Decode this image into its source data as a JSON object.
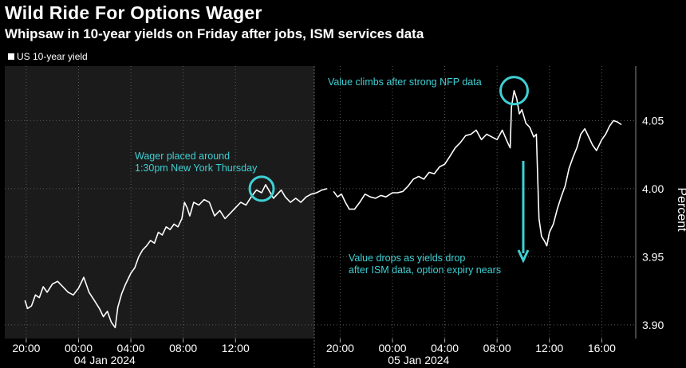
{
  "title": "Wild Ride For Options Wager",
  "subtitle": "Whipsaw in 10-year yields on Friday after jobs, ISM services data",
  "colors": {
    "background": "#000000",
    "shaded_region": "#1b1b1b",
    "line": "#ffffff",
    "annotation": "#3fd0d4",
    "grid": "#5a5a5a",
    "text": "#ffffff"
  },
  "chart_data": {
    "type": "line",
    "title": "Wild Ride For Options Wager",
    "subtitle": "Whipsaw in 10-year yields on Friday after jobs, ISM services data",
    "ylabel": "Percent",
    "ylim": [
      3.89,
      4.09
    ],
    "y_ticks": [
      "3.90",
      "3.95",
      "4.00",
      "4.05"
    ],
    "x_tick_hours": [
      -4,
      0,
      4,
      8,
      12,
      20,
      24,
      28,
      32,
      36,
      40
    ],
    "x_ticks": [
      "20:00",
      "00:00",
      "04:00",
      "08:00",
      "12:00",
      "20:00",
      "00:00",
      "04:00",
      "08:00",
      "12:00",
      "16:00"
    ],
    "date_labels": [
      "04 Jan 2024",
      "05 Jan 2024"
    ],
    "shaded_region": "04 Jan 2024",
    "grid": true,
    "legend": {
      "position": "top-left",
      "entries": [
        "US 10-year yield"
      ]
    },
    "series": [
      {
        "name": "US 10-year yield",
        "segments": [
          [
            [
              -4.1,
              3.918
            ],
            [
              -3.9,
              3.912
            ],
            [
              -3.6,
              3.914
            ],
            [
              -3.3,
              3.922
            ],
            [
              -3.0,
              3.92
            ],
            [
              -2.7,
              3.928
            ],
            [
              -2.4,
              3.924
            ],
            [
              -2.0,
              3.93
            ],
            [
              -1.6,
              3.932
            ],
            [
              -1.2,
              3.928
            ],
            [
              -0.8,
              3.924
            ],
            [
              -0.4,
              3.922
            ],
            [
              0.0,
              3.927
            ],
            [
              0.4,
              3.935
            ],
            [
              0.8,
              3.924
            ],
            [
              1.2,
              3.918
            ],
            [
              1.6,
              3.912
            ],
            [
              1.9,
              3.906
            ],
            [
              2.2,
              3.91
            ],
            [
              2.5,
              3.902
            ],
            [
              2.8,
              3.898
            ],
            [
              3.0,
              3.913
            ],
            [
              3.3,
              3.923
            ],
            [
              3.6,
              3.93
            ],
            [
              4.0,
              3.938
            ],
            [
              4.3,
              3.942
            ],
            [
              4.6,
              3.95
            ],
            [
              4.9,
              3.955
            ],
            [
              5.2,
              3.958
            ],
            [
              5.5,
              3.962
            ],
            [
              5.8,
              3.96
            ],
            [
              6.1,
              3.968
            ],
            [
              6.4,
              3.966
            ],
            [
              6.7,
              3.972
            ],
            [
              7.0,
              3.97
            ],
            [
              7.3,
              3.974
            ],
            [
              7.6,
              3.972
            ],
            [
              7.9,
              3.978
            ],
            [
              8.1,
              3.99
            ],
            [
              8.3,
              3.986
            ],
            [
              8.5,
              3.98
            ],
            [
              8.8,
              3.99
            ],
            [
              9.2,
              3.988
            ],
            [
              9.6,
              3.992
            ],
            [
              10.0,
              3.99
            ],
            [
              10.4,
              3.98
            ],
            [
              10.8,
              3.984
            ],
            [
              11.2,
              3.978
            ],
            [
              11.6,
              3.982
            ],
            [
              12.0,
              3.986
            ],
            [
              12.4,
              3.99
            ],
            [
              12.8,
              3.988
            ],
            [
              13.2,
              3.994
            ],
            [
              13.6,
              3.999
            ],
            [
              14.0,
              3.997
            ],
            [
              14.3,
              4.003
            ],
            [
              14.6,
              3.998
            ],
            [
              14.9,
              3.993
            ],
            [
              15.2,
              3.996
            ],
            [
              15.5,
              3.999
            ],
            [
              15.8,
              3.994
            ],
            [
              16.2,
              3.99
            ],
            [
              16.6,
              3.993
            ],
            [
              17.0,
              3.99
            ],
            [
              17.4,
              3.994
            ],
            [
              17.8,
              3.996
            ],
            [
              18.2,
              3.997
            ],
            [
              18.6,
              3.999
            ],
            [
              19.0,
              4.0
            ]
          ],
          [
            [
              19.5,
              3.998
            ],
            [
              19.8,
              3.994
            ],
            [
              20.1,
              3.996
            ],
            [
              20.4,
              3.99
            ],
            [
              20.7,
              3.985
            ],
            [
              21.1,
              3.985
            ],
            [
              21.5,
              3.99
            ],
            [
              21.9,
              3.996
            ],
            [
              22.3,
              3.994
            ],
            [
              22.7,
              3.993
            ],
            [
              23.1,
              3.995
            ],
            [
              23.5,
              3.994
            ],
            [
              24.0,
              3.997
            ],
            [
              24.4,
              3.997
            ],
            [
              24.8,
              3.998
            ],
            [
              25.2,
              4.002
            ],
            [
              25.6,
              4.007
            ],
            [
              26.0,
              4.009
            ],
            [
              26.4,
              4.007
            ],
            [
              26.8,
              4.012
            ],
            [
              27.2,
              4.011
            ],
            [
              27.6,
              4.016
            ],
            [
              28.0,
              4.018
            ],
            [
              28.4,
              4.024
            ],
            [
              28.8,
              4.03
            ],
            [
              29.2,
              4.034
            ],
            [
              29.6,
              4.039
            ],
            [
              30.0,
              4.04
            ],
            [
              30.4,
              4.043
            ],
            [
              30.8,
              4.036
            ],
            [
              31.2,
              4.04
            ],
            [
              31.6,
              4.038
            ],
            [
              32.0,
              4.036
            ],
            [
              32.4,
              4.043
            ],
            [
              32.8,
              4.034
            ],
            [
              33.0,
              4.03
            ],
            [
              33.1,
              4.06
            ],
            [
              33.3,
              4.072
            ],
            [
              33.5,
              4.066
            ],
            [
              33.7,
              4.055
            ],
            [
              33.9,
              4.058
            ],
            [
              34.2,
              4.048
            ],
            [
              34.5,
              4.045
            ],
            [
              34.8,
              4.038
            ],
            [
              35.0,
              4.04
            ],
            [
              35.2,
              3.978
            ],
            [
              35.4,
              3.965
            ],
            [
              35.6,
              3.962
            ],
            [
              35.8,
              3.958
            ],
            [
              36.0,
              3.968
            ],
            [
              36.3,
              3.974
            ],
            [
              36.6,
              3.985
            ],
            [
              36.9,
              3.994
            ],
            [
              37.2,
              4.002
            ],
            [
              37.5,
              4.015
            ],
            [
              37.8,
              4.023
            ],
            [
              38.1,
              4.03
            ],
            [
              38.4,
              4.04
            ],
            [
              38.7,
              4.044
            ],
            [
              39.0,
              4.038
            ],
            [
              39.3,
              4.032
            ],
            [
              39.6,
              4.028
            ],
            [
              40.0,
              4.036
            ],
            [
              40.3,
              4.04
            ],
            [
              40.6,
              4.046
            ],
            [
              40.9,
              4.05
            ],
            [
              41.2,
              4.049
            ],
            [
              41.5,
              4.047
            ]
          ]
        ]
      }
    ],
    "annotations": [
      {
        "text": [
          "Wager placed around",
          "1:30pm New York Thursday"
        ],
        "x_hour": 14.0,
        "y": 4.0
      },
      {
        "text": [
          "Value climbs after strong NFP data"
        ],
        "x_hour": 33.3,
        "y": 4.072
      },
      {
        "text": [
          "Value drops as yields drop",
          "after ISM data, option expiry nears"
        ],
        "x_hour": 34.0,
        "y": 3.98
      }
    ]
  }
}
